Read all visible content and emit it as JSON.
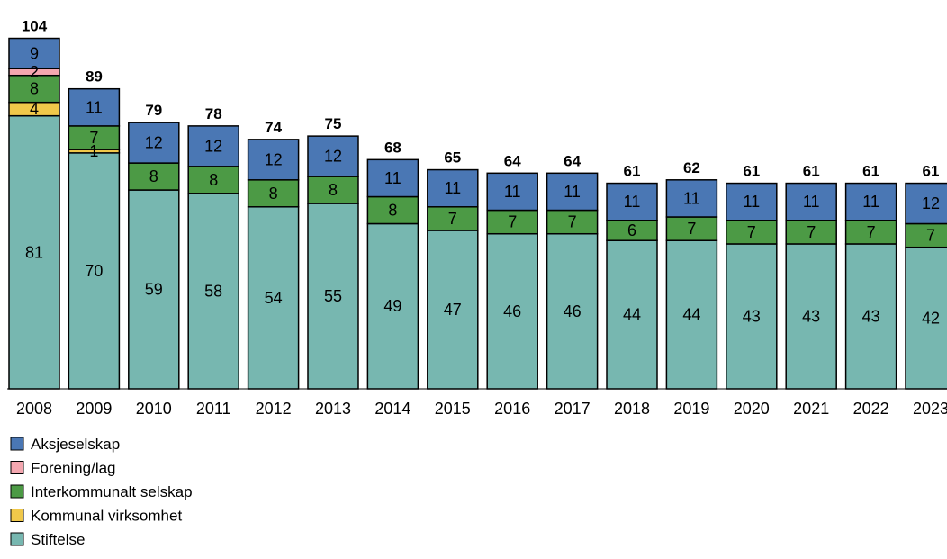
{
  "chart_data": {
    "type": "bar",
    "stacked": true,
    "categories": [
      "2008",
      "2009",
      "2010",
      "2011",
      "2012",
      "2013",
      "2014",
      "2015",
      "2016",
      "2017",
      "2018",
      "2019",
      "2020",
      "2021",
      "2022",
      "2023"
    ],
    "series": [
      {
        "name": "Stiftelse",
        "color": "#77b7b0",
        "values": [
          81,
          70,
          59,
          58,
          54,
          55,
          49,
          47,
          46,
          46,
          44,
          44,
          43,
          43,
          43,
          42
        ]
      },
      {
        "name": "Kommunal virksomhet",
        "color": "#f0c84a",
        "values": [
          4,
          1,
          0,
          0,
          0,
          0,
          0,
          0,
          0,
          0,
          0,
          0,
          0,
          0,
          0,
          0
        ]
      },
      {
        "name": "Interkommunalt selskap",
        "color": "#4c9a45",
        "values": [
          8,
          7,
          8,
          8,
          8,
          8,
          8,
          7,
          7,
          7,
          6,
          7,
          7,
          7,
          7,
          7
        ]
      },
      {
        "name": "Forening/lag",
        "color": "#f4a7b0",
        "values": [
          2,
          0,
          0,
          0,
          0,
          0,
          0,
          0,
          0,
          0,
          0,
          0,
          0,
          0,
          0,
          0
        ]
      },
      {
        "name": "Aksjeselskap",
        "color": "#4a77b4",
        "values": [
          9,
          11,
          12,
          12,
          12,
          12,
          11,
          11,
          11,
          11,
          11,
          11,
          11,
          11,
          11,
          12
        ]
      }
    ],
    "totals": [
      104,
      89,
      79,
      78,
      74,
      75,
      68,
      65,
      64,
      64,
      61,
      62,
      61,
      61,
      61,
      61
    ],
    "legend_order": [
      "Aksjeselskap",
      "Forening/lag",
      "Interkommunalt selskap",
      "Kommunal virksomhet",
      "Stiftelse"
    ],
    "legend_position": "bottom-left",
    "ylim": [
      0,
      110
    ],
    "grid": false
  }
}
